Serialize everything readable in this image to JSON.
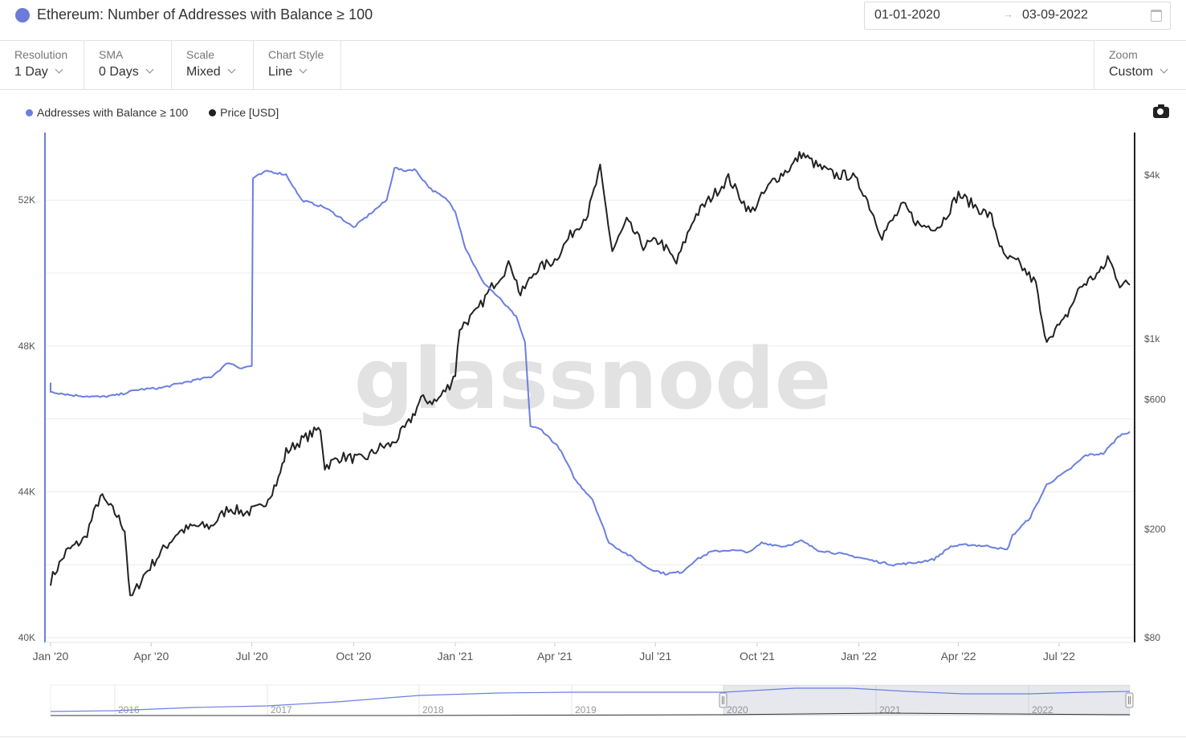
{
  "header": {
    "title": "Ethereum: Number of Addresses with Balance ≥ 100",
    "date_from": "01-01-2020",
    "date_arrow": "→",
    "date_to": "03-09-2022"
  },
  "toolbar": {
    "resolution": {
      "label": "Resolution",
      "value": "1 Day"
    },
    "sma": {
      "label": "SMA",
      "value": "0 Days"
    },
    "scale": {
      "label": "Scale",
      "value": "Mixed"
    },
    "chart_style": {
      "label": "Chart Style",
      "value": "Line"
    },
    "zoom": {
      "label": "Zoom",
      "value": "Custom"
    }
  },
  "watermark": "glassnode",
  "colors": {
    "addresses": "#6b7fdf",
    "price": "#222222",
    "grid": "#ececec"
  },
  "icons": {
    "asset": "ethereum-icon",
    "calendar": "calendar-icon",
    "screenshot": "camera-icon"
  },
  "chart_data": {
    "type": "line",
    "title": "Ethereum: Number of Addresses with Balance ≥ 100",
    "x_range": [
      "2020-01-01",
      "2022-09-03"
    ],
    "x_tick_labels": [
      "Jan '20",
      "Apr '20",
      "Jul '20",
      "Oct '20",
      "Jan '21",
      "Apr '21",
      "Jul '21",
      "Oct '21",
      "Jan '22",
      "Apr '22",
      "Jul '22"
    ],
    "left_axis": {
      "scale": "linear",
      "range": [
        40000,
        54000
      ],
      "tick_labels": [
        "40K",
        "44K",
        "48K",
        "52K"
      ]
    },
    "right_axis": {
      "scale": "log",
      "range": [
        80,
        5000
      ],
      "tick_labels": [
        "$80",
        "$200",
        "$600",
        "$1k",
        "$4k"
      ]
    },
    "legend_position": "top-left",
    "grid": true,
    "series": [
      {
        "name": "Addresses with Balance ≥ 100",
        "axis": "left",
        "points": [
          [
            "2020-01-01",
            47000
          ],
          [
            "2020-01-01",
            46750
          ],
          [
            "2020-01-20",
            46650
          ],
          [
            "2020-02-15",
            46600
          ],
          [
            "2020-03-01",
            46650
          ],
          [
            "2020-03-20",
            46800
          ],
          [
            "2020-04-10",
            46850
          ],
          [
            "2020-05-01",
            47000
          ],
          [
            "2020-05-25",
            47150
          ],
          [
            "2020-06-10",
            47550
          ],
          [
            "2020-06-20",
            47400
          ],
          [
            "2020-07-01",
            47450
          ],
          [
            "2020-07-02",
            52600
          ],
          [
            "2020-07-15",
            52800
          ],
          [
            "2020-08-01",
            52700
          ],
          [
            "2020-08-15",
            52000
          ],
          [
            "2020-09-05",
            51800
          ],
          [
            "2020-09-20",
            51500
          ],
          [
            "2020-10-01",
            51250
          ],
          [
            "2020-10-15",
            51600
          ],
          [
            "2020-10-31",
            52000
          ],
          [
            "2020-11-07",
            52900
          ],
          [
            "2020-11-15",
            52800
          ],
          [
            "2020-11-25",
            52850
          ],
          [
            "2020-12-10",
            52300
          ],
          [
            "2020-12-25",
            52000
          ],
          [
            "2021-01-01",
            51700
          ],
          [
            "2021-01-10",
            50700
          ],
          [
            "2021-01-25",
            49800
          ],
          [
            "2021-02-10",
            49300
          ],
          [
            "2021-02-25",
            48800
          ],
          [
            "2021-03-05",
            48100
          ],
          [
            "2021-03-10",
            45800
          ],
          [
            "2021-03-20",
            45700
          ],
          [
            "2021-04-05",
            45200
          ],
          [
            "2021-04-20",
            44300
          ],
          [
            "2021-05-05",
            43800
          ],
          [
            "2021-05-20",
            42600
          ],
          [
            "2021-06-10",
            42200
          ],
          [
            "2021-06-25",
            41900
          ],
          [
            "2021-07-10",
            41750
          ],
          [
            "2021-07-25",
            41800
          ],
          [
            "2021-08-05",
            42100
          ],
          [
            "2021-08-20",
            42350
          ],
          [
            "2021-09-05",
            42400
          ],
          [
            "2021-09-25",
            42350
          ],
          [
            "2021-10-05",
            42600
          ],
          [
            "2021-10-25",
            42500
          ],
          [
            "2021-11-10",
            42650
          ],
          [
            "2021-11-25",
            42400
          ],
          [
            "2021-12-15",
            42300
          ],
          [
            "2022-01-01",
            42200
          ],
          [
            "2022-01-15",
            42100
          ],
          [
            "2022-02-01",
            42000
          ],
          [
            "2022-02-20",
            42050
          ],
          [
            "2022-03-10",
            42150
          ],
          [
            "2022-03-25",
            42500
          ],
          [
            "2022-04-10",
            42550
          ],
          [
            "2022-05-01",
            42500
          ],
          [
            "2022-05-15",
            42400
          ],
          [
            "2022-05-20",
            42800
          ],
          [
            "2022-06-05",
            43300
          ],
          [
            "2022-06-20",
            44200
          ],
          [
            "2022-07-10",
            44600
          ],
          [
            "2022-07-25",
            45000
          ],
          [
            "2022-08-10",
            45050
          ],
          [
            "2022-08-25",
            45550
          ],
          [
            "2022-09-03",
            45650
          ]
        ]
      },
      {
        "name": "Price [USD]",
        "axis": "right",
        "points": [
          [
            "2020-01-01",
            130
          ],
          [
            "2020-01-15",
            165
          ],
          [
            "2020-02-01",
            185
          ],
          [
            "2020-02-15",
            265
          ],
          [
            "2020-03-01",
            225
          ],
          [
            "2020-03-08",
            200
          ],
          [
            "2020-03-13",
            110
          ],
          [
            "2020-03-25",
            135
          ],
          [
            "2020-04-10",
            165
          ],
          [
            "2020-04-25",
            195
          ],
          [
            "2020-05-10",
            205
          ],
          [
            "2020-05-25",
            205
          ],
          [
            "2020-06-10",
            240
          ],
          [
            "2020-06-25",
            230
          ],
          [
            "2020-07-10",
            240
          ],
          [
            "2020-07-25",
            305
          ],
          [
            "2020-08-01",
            385
          ],
          [
            "2020-08-15",
            425
          ],
          [
            "2020-09-01",
            470
          ],
          [
            "2020-09-05",
            340
          ],
          [
            "2020-09-20",
            370
          ],
          [
            "2020-10-10",
            360
          ],
          [
            "2020-10-25",
            400
          ],
          [
            "2020-11-05",
            410
          ],
          [
            "2020-11-20",
            490
          ],
          [
            "2020-12-01",
            600
          ],
          [
            "2020-12-15",
            590
          ],
          [
            "2020-12-27",
            680
          ],
          [
            "2021-01-01",
            750
          ],
          [
            "2021-01-05",
            1100
          ],
          [
            "2021-01-20",
            1250
          ],
          [
            "2021-02-05",
            1600
          ],
          [
            "2021-02-20",
            1900
          ],
          [
            "2021-03-01",
            1450
          ],
          [
            "2021-03-15",
            1800
          ],
          [
            "2021-04-01",
            1950
          ],
          [
            "2021-04-15",
            2400
          ],
          [
            "2021-05-01",
            2900
          ],
          [
            "2021-05-12",
            4200
          ],
          [
            "2021-05-23",
            2100
          ],
          [
            "2021-06-05",
            2700
          ],
          [
            "2021-06-20",
            2200
          ],
          [
            "2021-07-05",
            2300
          ],
          [
            "2021-07-20",
            1900
          ],
          [
            "2021-08-05",
            2800
          ],
          [
            "2021-08-20",
            3300
          ],
          [
            "2021-09-05",
            3900
          ],
          [
            "2021-09-25",
            2900
          ],
          [
            "2021-10-15",
            3800
          ],
          [
            "2021-11-01",
            4300
          ],
          [
            "2021-11-10",
            4800
          ],
          [
            "2021-11-25",
            4300
          ],
          [
            "2021-12-10",
            4000
          ],
          [
            "2021-12-25",
            4000
          ],
          [
            "2022-01-05",
            3500
          ],
          [
            "2022-01-22",
            2400
          ],
          [
            "2022-02-10",
            3100
          ],
          [
            "2022-02-25",
            2600
          ],
          [
            "2022-03-15",
            2600
          ],
          [
            "2022-04-01",
            3400
          ],
          [
            "2022-04-20",
            3000
          ],
          [
            "2022-05-01",
            2800
          ],
          [
            "2022-05-12",
            2000
          ],
          [
            "2022-05-25",
            1900
          ],
          [
            "2022-06-10",
            1600
          ],
          [
            "2022-06-18",
            1000
          ],
          [
            "2022-07-05",
            1150
          ],
          [
            "2022-07-20",
            1550
          ],
          [
            "2022-08-10",
            1800
          ],
          [
            "2022-08-14",
            2000
          ],
          [
            "2022-08-25",
            1600
          ],
          [
            "2022-09-03",
            1580
          ]
        ]
      }
    ]
  },
  "navigator": {
    "year_labels": [
      "2016",
      "2017",
      "2018",
      "2019",
      "2020",
      "2021",
      "2022"
    ]
  }
}
